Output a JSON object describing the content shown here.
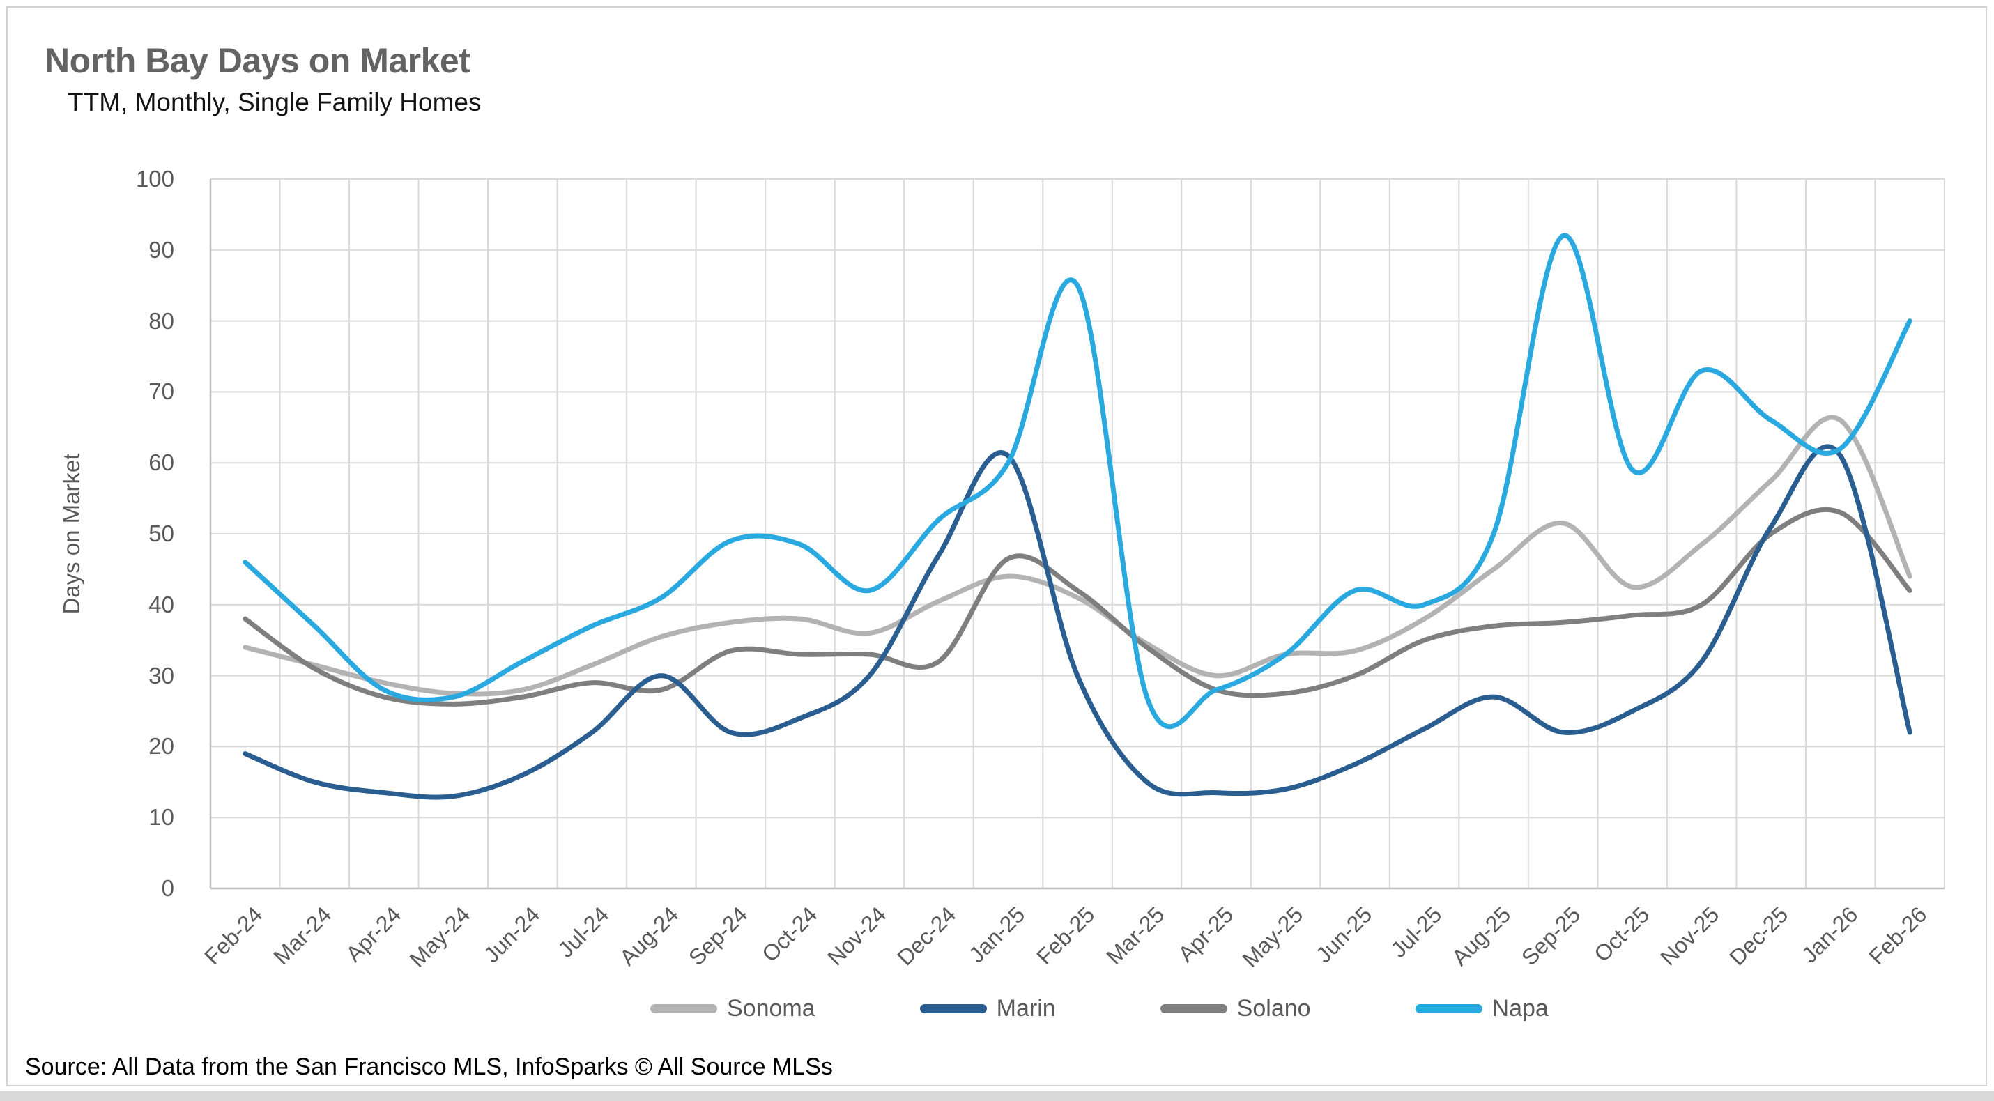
{
  "header": {
    "title": "North Bay Days on Market",
    "subtitle": "TTM, Monthly, Single Family Homes"
  },
  "footer": {
    "source": "Source: All Data from the San Francisco MLS, InfoSparks © All Source MLSs"
  },
  "chart_data": {
    "type": "line",
    "title": "North Bay Days on Market",
    "subtitle": "TTM, Monthly, Single Family Homes",
    "xlabel": "",
    "ylabel": "Days on Market",
    "ylim": [
      0,
      100
    ],
    "yticks": [
      0,
      10,
      20,
      30,
      40,
      50,
      60,
      70,
      80,
      90,
      100
    ],
    "grid": true,
    "smooth_lines": true,
    "legend_position": "bottom",
    "categories": [
      "Feb-24",
      "Mar-24",
      "Apr-24",
      "May-24",
      "Jun-24",
      "Jul-24",
      "Aug-24",
      "Sep-24",
      "Oct-24",
      "Nov-24",
      "Dec-24",
      "Jan-25",
      "Feb-25",
      "Mar-25",
      "Apr-25",
      "May-25",
      "Jun-25",
      "Jul-25",
      "Aug-25",
      "Sep-25",
      "Oct-25",
      "Nov-25",
      "Dec-25",
      "Jan-26",
      "Feb-26"
    ],
    "series": [
      {
        "name": "Sonoma",
        "color": "#B3B3B3",
        "values": [
          34,
          31.5,
          29,
          27.5,
          28,
          31.5,
          35.5,
          37.5,
          38,
          36,
          40.5,
          44,
          41,
          34.5,
          30,
          33,
          33.5,
          38,
          45,
          51.5,
          42.5,
          48.5,
          57.5,
          66,
          44
        ]
      },
      {
        "name": "Marin",
        "color": "#2A5E91",
        "values": [
          19,
          15,
          13.5,
          13,
          16,
          22,
          30,
          22,
          24,
          30,
          47,
          61,
          30,
          15,
          13.5,
          14,
          17.5,
          22.5,
          27,
          22,
          25,
          32,
          51,
          61,
          22
        ]
      },
      {
        "name": "Solano",
        "color": "#7F7F7F",
        "values": [
          38,
          31,
          27,
          26,
          27,
          29,
          28,
          33.5,
          33,
          33,
          32,
          46.5,
          42,
          34,
          28,
          27.5,
          30,
          35,
          37,
          37.5,
          38.5,
          40,
          50,
          53,
          42
        ]
      },
      {
        "name": "Napa",
        "color": "#29A9DF",
        "values": [
          46,
          37,
          28,
          27,
          32,
          37,
          41,
          49,
          48.5,
          42,
          52,
          60,
          85,
          27,
          28,
          33,
          42,
          40,
          50,
          92,
          59,
          73,
          66,
          62,
          80
        ]
      }
    ],
    "draw_order": [
      "Sonoma",
      "Solano",
      "Marin",
      "Napa"
    ],
    "gridline_color": "#D9D9D9",
    "axis_line_color": "#BFBFBF",
    "text_color": "#595959"
  }
}
